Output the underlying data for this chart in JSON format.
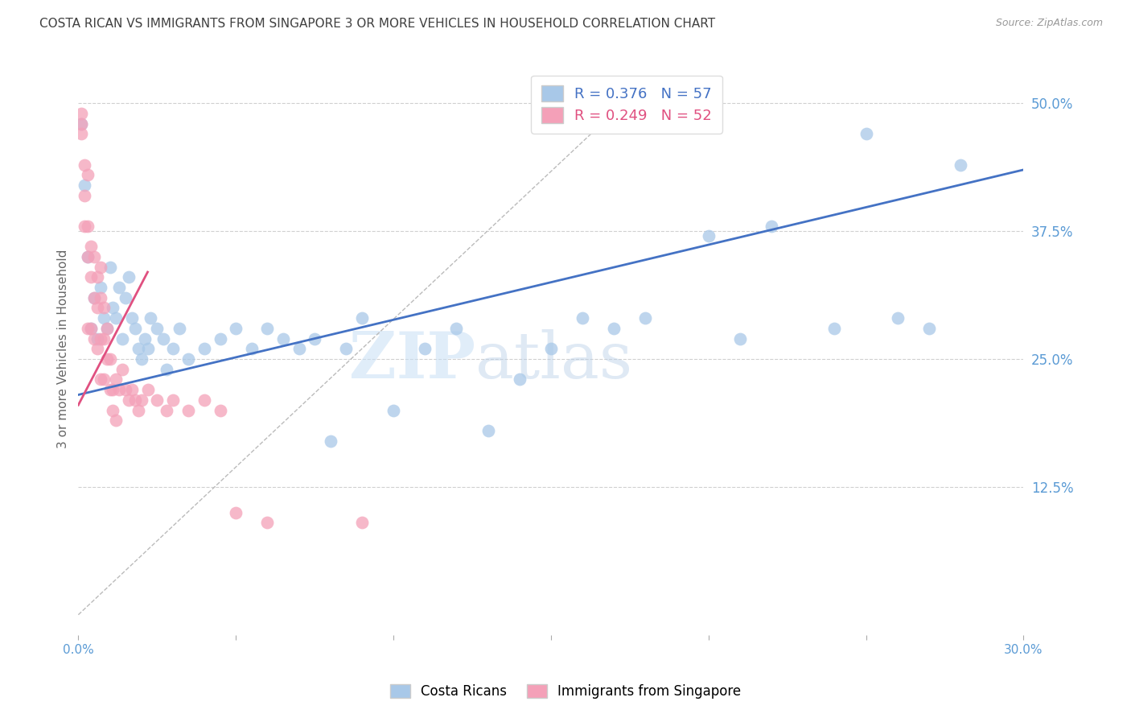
{
  "title": "COSTA RICAN VS IMMIGRANTS FROM SINGAPORE 3 OR MORE VEHICLES IN HOUSEHOLD CORRELATION CHART",
  "source": "Source: ZipAtlas.com",
  "ylabel": "3 or more Vehicles in Household",
  "xlim": [
    0.0,
    0.3
  ],
  "ylim": [
    -0.02,
    0.54
  ],
  "yticks_right": [
    0.125,
    0.25,
    0.375,
    0.5
  ],
  "ytick_right_labels": [
    "12.5%",
    "25.0%",
    "37.5%",
    "50.0%"
  ],
  "blue_R": 0.376,
  "blue_N": 57,
  "pink_R": 0.249,
  "pink_N": 52,
  "blue_color": "#a8c8e8",
  "pink_color": "#f4a0b8",
  "blue_line_color": "#4472c4",
  "pink_line_color": "#e05080",
  "background_color": "#ffffff",
  "grid_color": "#d0d0d0",
  "title_color": "#404040",
  "right_axis_color": "#5b9bd5",
  "watermark_color": "#ddeeff",
  "bottom_legend_labels": [
    "Costa Ricans",
    "Immigrants from Singapore"
  ],
  "blue_scatter_x": [
    0.001,
    0.002,
    0.003,
    0.004,
    0.005,
    0.006,
    0.007,
    0.008,
    0.009,
    0.01,
    0.011,
    0.012,
    0.013,
    0.014,
    0.015,
    0.016,
    0.017,
    0.018,
    0.019,
    0.02,
    0.021,
    0.022,
    0.023,
    0.025,
    0.027,
    0.028,
    0.03,
    0.032,
    0.035,
    0.04,
    0.045,
    0.05,
    0.055,
    0.06,
    0.065,
    0.07,
    0.075,
    0.08,
    0.085,
    0.09,
    0.1,
    0.11,
    0.12,
    0.13,
    0.14,
    0.15,
    0.16,
    0.17,
    0.18,
    0.2,
    0.21,
    0.22,
    0.24,
    0.25,
    0.26,
    0.27,
    0.28
  ],
  "blue_scatter_y": [
    0.48,
    0.42,
    0.35,
    0.28,
    0.31,
    0.27,
    0.32,
    0.29,
    0.28,
    0.34,
    0.3,
    0.29,
    0.32,
    0.27,
    0.31,
    0.33,
    0.29,
    0.28,
    0.26,
    0.25,
    0.27,
    0.26,
    0.29,
    0.28,
    0.27,
    0.24,
    0.26,
    0.28,
    0.25,
    0.26,
    0.27,
    0.28,
    0.26,
    0.28,
    0.27,
    0.26,
    0.27,
    0.17,
    0.26,
    0.29,
    0.2,
    0.26,
    0.28,
    0.18,
    0.23,
    0.26,
    0.29,
    0.28,
    0.29,
    0.37,
    0.27,
    0.38,
    0.28,
    0.47,
    0.29,
    0.28,
    0.44
  ],
  "pink_scatter_x": [
    0.001,
    0.001,
    0.001,
    0.002,
    0.002,
    0.002,
    0.003,
    0.003,
    0.003,
    0.003,
    0.004,
    0.004,
    0.004,
    0.005,
    0.005,
    0.005,
    0.006,
    0.006,
    0.006,
    0.007,
    0.007,
    0.007,
    0.007,
    0.008,
    0.008,
    0.008,
    0.009,
    0.009,
    0.01,
    0.01,
    0.011,
    0.011,
    0.012,
    0.012,
    0.013,
    0.014,
    0.015,
    0.016,
    0.017,
    0.018,
    0.019,
    0.02,
    0.022,
    0.025,
    0.028,
    0.03,
    0.035,
    0.04,
    0.045,
    0.05,
    0.06,
    0.09
  ],
  "pink_scatter_y": [
    0.49,
    0.48,
    0.47,
    0.44,
    0.41,
    0.38,
    0.43,
    0.38,
    0.35,
    0.28,
    0.36,
    0.33,
    0.28,
    0.35,
    0.31,
    0.27,
    0.33,
    0.3,
    0.26,
    0.34,
    0.31,
    0.27,
    0.23,
    0.3,
    0.27,
    0.23,
    0.28,
    0.25,
    0.25,
    0.22,
    0.22,
    0.2,
    0.23,
    0.19,
    0.22,
    0.24,
    0.22,
    0.21,
    0.22,
    0.21,
    0.2,
    0.21,
    0.22,
    0.21,
    0.2,
    0.21,
    0.2,
    0.21,
    0.2,
    0.1,
    0.09,
    0.09
  ],
  "blue_trendline_x": [
    0.0,
    0.3
  ],
  "blue_trendline_y": [
    0.215,
    0.435
  ],
  "pink_trendline_x": [
    0.0,
    0.022
  ],
  "pink_trendline_y": [
    0.205,
    0.335
  ],
  "ref_line_x": [
    0.0,
    0.18
  ],
  "ref_line_y": [
    0.0,
    0.52
  ]
}
